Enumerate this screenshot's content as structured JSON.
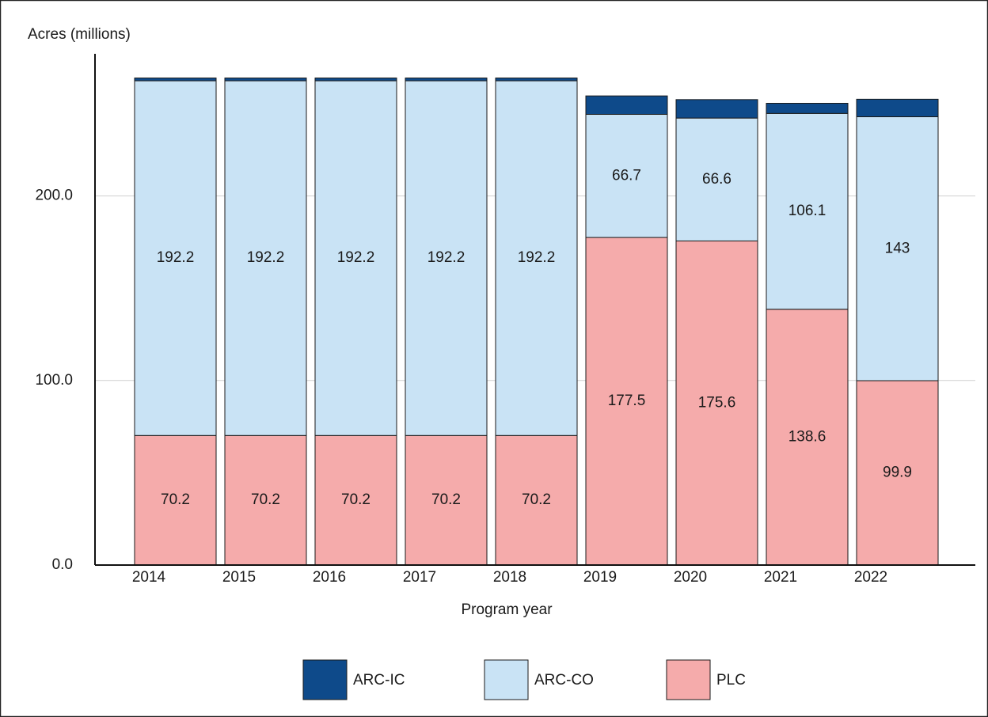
{
  "chart_data": {
    "type": "stacked-bar",
    "y_label": "Acres (millions)",
    "x_label": "Program year",
    "categories": [
      "2014",
      "2015",
      "2016",
      "2017",
      "2018",
      "2019",
      "2020",
      "2021",
      "2022"
    ],
    "series": [
      {
        "name": "ARC-IC",
        "color": "#0e4a8a",
        "values": [
          1.5,
          1.5,
          1.5,
          1.5,
          1.5,
          10,
          10,
          5.5,
          9.5
        ]
      },
      {
        "name": "ARC-CO",
        "color": "#c9e3f5",
        "values": [
          192.2,
          192.2,
          192.2,
          192.2,
          192.2,
          66.7,
          66.6,
          106.1,
          143
        ]
      },
      {
        "name": "PLC",
        "color": "#f5abab",
        "values": [
          70.2,
          70.2,
          70.2,
          70.2,
          70.2,
          177.5,
          175.6,
          138.6,
          99.9
        ]
      }
    ],
    "ylim": [
      0,
      277
    ],
    "yticks": [
      {
        "value": 0,
        "label": "0.0"
      },
      {
        "value": 100,
        "label": "100.0"
      },
      {
        "value": 200,
        "label": "200.0"
      }
    ],
    "grid": true
  }
}
